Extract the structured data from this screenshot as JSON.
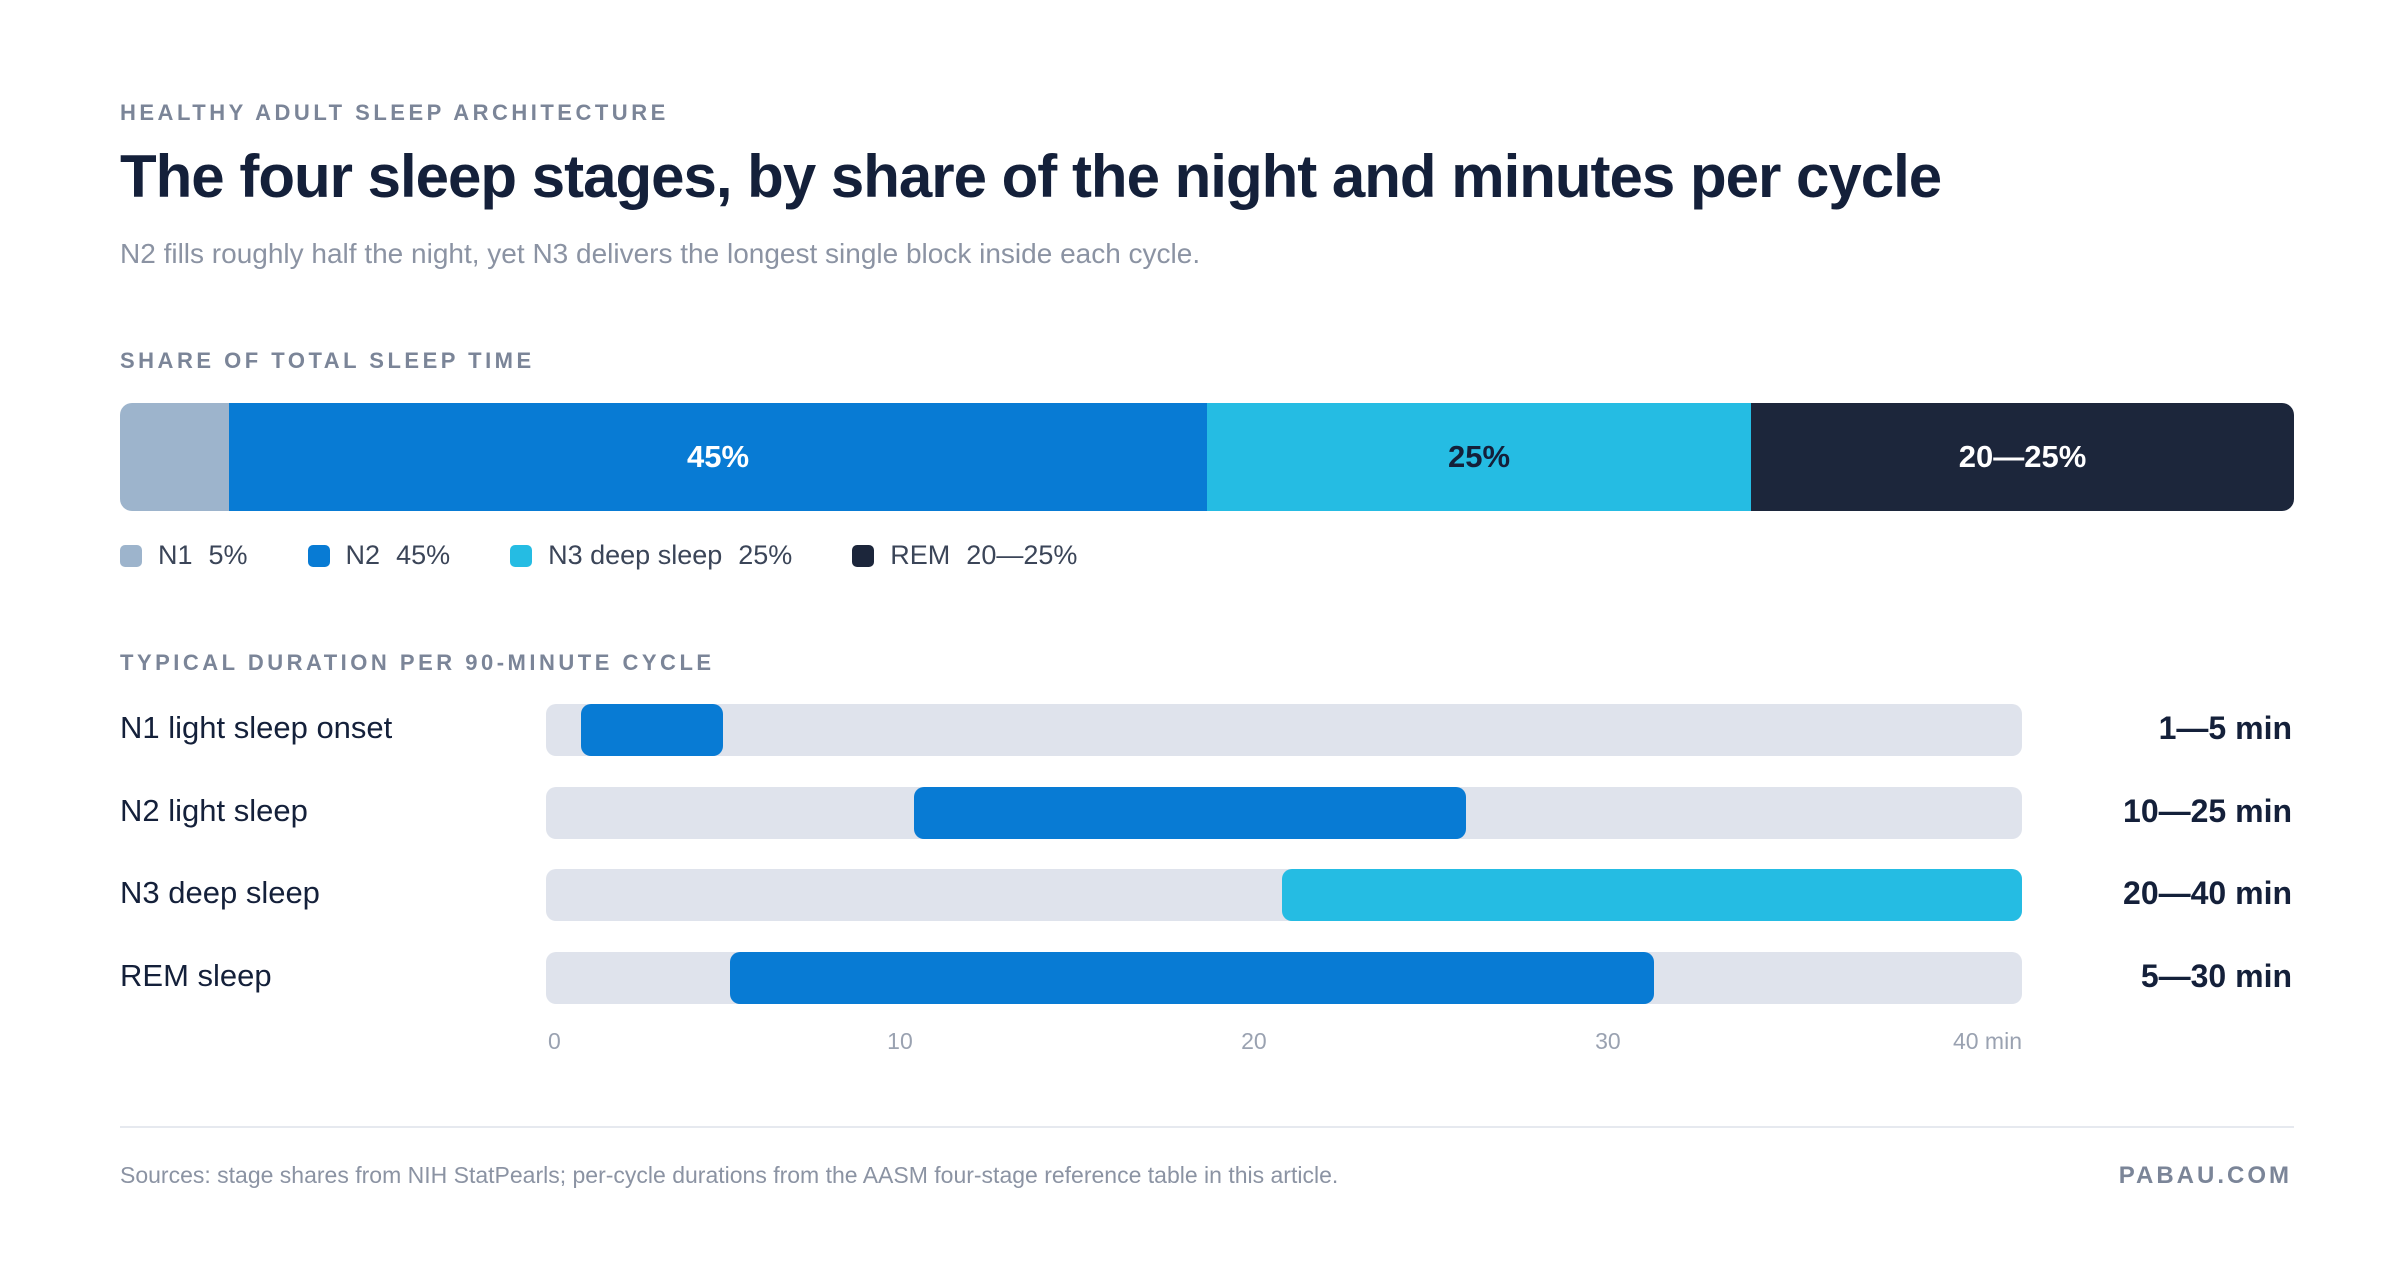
{
  "header": {
    "eyebrow": "HEALTHY ADULT SLEEP ARCHITECTURE",
    "title": "The four sleep stages, by share of the night and minutes per cycle",
    "subtitle": "N2 fills roughly half the night, yet N3 delivers the longest single block inside each cycle."
  },
  "share_section": {
    "heading": "SHARE OF TOTAL SLEEP TIME"
  },
  "duration_section": {
    "heading": "TYPICAL DURATION PER 90-MINUTE CYCLE"
  },
  "footer": {
    "source": "Sources: stage shares from NIH StatPearls; per-cycle durations from the AASM four-stage reference table in this article.",
    "brand": "PABAU.COM"
  },
  "colors": {
    "n1": "#9db4cc",
    "n2": "#087bd4",
    "n3": "#25bce3",
    "rem": "#1c263b",
    "track": "#dfe3ec"
  },
  "chart_data": [
    {
      "type": "bar",
      "orientation": "horizontal-stacked",
      "title": "SHARE OF TOTAL SLEEP TIME",
      "unit": "%",
      "segments": [
        {
          "stage": "N1",
          "value": 5,
          "value_label": "",
          "legend_name": "N1",
          "legend_value": "5%",
          "color": "#9db4cc",
          "label_color": "#ffffff"
        },
        {
          "stage": "N2",
          "value": 45,
          "value_label": "45%",
          "legend_name": "N2",
          "legend_value": "45%",
          "color": "#087bd4",
          "label_color": "#ffffff"
        },
        {
          "stage": "N3",
          "value": 25,
          "value_label": "25%",
          "legend_name": "N3 deep sleep",
          "legend_value": "25%",
          "color": "#25bce3",
          "label_color": "#14203a"
        },
        {
          "stage": "REM",
          "value": 25,
          "value_range": [
            20,
            25
          ],
          "value_label": "20—25%",
          "legend_name": "REM",
          "legend_value": "20—25%",
          "color": "#1c263b",
          "label_color": "#ffffff"
        }
      ]
    },
    {
      "type": "bar",
      "orientation": "horizontal-range",
      "title": "TYPICAL DURATION PER 90-MINUTE CYCLE",
      "xlim": [
        0,
        41.7
      ],
      "x_ticks": [
        {
          "value": 0,
          "label": "0"
        },
        {
          "value": 10,
          "label": "10"
        },
        {
          "value": 20,
          "label": "20"
        },
        {
          "value": 30,
          "label": "30"
        },
        {
          "value": 40,
          "label": "40 min"
        }
      ],
      "rows": [
        {
          "label": "N1 light sleep onset",
          "start": 1,
          "end": 5,
          "value_label": "1—5 min",
          "color": "#087bd4"
        },
        {
          "label": "N2 light sleep",
          "start": 10.4,
          "end": 26,
          "value_label": "10—25 min",
          "color": "#087bd4"
        },
        {
          "label": "N3 deep sleep",
          "start": 20.8,
          "end": 41.7,
          "value_label": "20—40 min",
          "color": "#25bce3"
        },
        {
          "label": "REM sleep",
          "start": 5.2,
          "end": 31.3,
          "value_label": "5—30 min",
          "color": "#087bd4"
        }
      ]
    }
  ]
}
